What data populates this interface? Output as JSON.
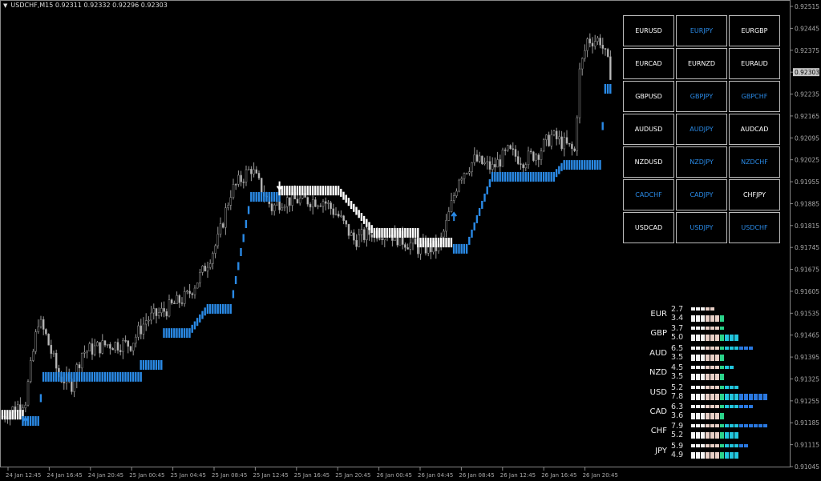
{
  "header": {
    "symbol": "USDCHF,M15",
    "open": "0.92311",
    "high": "0.92332",
    "low": "0.92296",
    "close": "0.92303"
  },
  "price_axis": {
    "ticks": [
      "0.92515",
      "0.92445",
      "0.92375",
      "0.92303",
      "0.92235",
      "0.92165",
      "0.92095",
      "0.92025",
      "0.91955",
      "0.91885",
      "0.91815",
      "0.91745",
      "0.91675",
      "0.91605",
      "0.91535",
      "0.91465",
      "0.91395",
      "0.91325",
      "0.91255",
      "0.91185",
      "0.91115",
      "0.91045"
    ],
    "current_price": "0.92303",
    "range": [
      0.91045,
      0.92515
    ]
  },
  "time_axis": {
    "ticks": [
      "24 Jan 12:45",
      "24 Jan 16:45",
      "24 Jan 20:45",
      "25 Jan 00:45",
      "25 Jan 04:45",
      "25 Jan 08:45",
      "25 Jan 12:45",
      "25 Jan 16:45",
      "25 Jan 20:45",
      "26 Jan 00:45",
      "26 Jan 04:45",
      "26 Jan 08:45",
      "26 Jan 12:45",
      "26 Jan 16:45",
      "26 Jan 20:45"
    ]
  },
  "colors": {
    "bull": "#2a8ae6",
    "bear": "#ffffff",
    "candle": "#9a9a9a",
    "blue_text": "#2a8ae6",
    "white_text": "#ffffff"
  },
  "price_path": [
    [
      0,
      0.91206
    ],
    [
      9,
      0.91257
    ],
    [
      14,
      0.91513
    ],
    [
      17,
      0.91461
    ],
    [
      22,
      0.91334
    ],
    [
      27,
      0.91308
    ],
    [
      31,
      0.9141
    ],
    [
      41,
      0.91436
    ],
    [
      50,
      0.91436
    ],
    [
      56,
      0.91513
    ],
    [
      62,
      0.91538
    ],
    [
      72,
      0.91589
    ],
    [
      78,
      0.91666
    ],
    [
      84,
      0.91768
    ],
    [
      89,
      0.91922
    ],
    [
      94,
      0.91973
    ],
    [
      97,
      0.91998
    ],
    [
      100,
      0.91947
    ],
    [
      105,
      0.91871
    ],
    [
      109,
      0.91896
    ],
    [
      125,
      0.91896
    ],
    [
      131,
      0.91845
    ],
    [
      137,
      0.91768
    ],
    [
      144,
      0.91794
    ],
    [
      150,
      0.91794
    ],
    [
      156,
      0.91768
    ],
    [
      162,
      0.91743
    ],
    [
      170,
      0.91743
    ],
    [
      173,
      0.91819
    ],
    [
      178,
      0.91973
    ],
    [
      184,
      0.92024
    ],
    [
      191,
      0.91998
    ],
    [
      197,
      0.9205
    ],
    [
      203,
      0.92024
    ],
    [
      209,
      0.9205
    ],
    [
      214,
      0.92101
    ],
    [
      219,
      0.92075
    ],
    [
      223,
      0.9205
    ],
    [
      225,
      0.92305
    ],
    [
      228,
      0.92408
    ],
    [
      233,
      0.92408
    ],
    [
      237,
      0.92305
    ]
  ],
  "indicator": [
    {
      "from": 0,
      "to": 8,
      "level": 0.91226,
      "trend": "down"
    },
    {
      "from": 8,
      "to": 14,
      "level": 0.91206,
      "trend": "up"
    },
    {
      "from": 16,
      "to": 54,
      "level": 0.91347,
      "trend": "up"
    },
    {
      "from": 54,
      "to": 62,
      "level": 0.91385,
      "trend": "up"
    },
    {
      "from": 63,
      "to": 73,
      "level": 0.91487,
      "trend": "up"
    },
    {
      "from": 80,
      "to": 89,
      "level": 0.91564,
      "trend": "up"
    },
    {
      "from": 97,
      "to": 108,
      "level": 0.91922,
      "trend": "up"
    },
    {
      "from": 108,
      "to": 131,
      "level": 0.91942,
      "trend": "down"
    },
    {
      "from": 145,
      "to": 162,
      "level": 0.91807,
      "trend": "down"
    },
    {
      "from": 162,
      "to": 175,
      "level": 0.91776,
      "trend": "down"
    },
    {
      "from": 176,
      "to": 181,
      "level": 0.91756,
      "trend": "up"
    },
    {
      "from": 191,
      "to": 215,
      "level": 0.91986,
      "trend": "up"
    },
    {
      "from": 219,
      "to": 233,
      "level": 0.92024,
      "trend": "up"
    },
    {
      "from": 235,
      "to": 237,
      "level": 0.92267,
      "trend": "up"
    }
  ],
  "arrows": [
    {
      "bar": 108,
      "dir": "down"
    },
    {
      "bar": 9,
      "dir": "up"
    },
    {
      "bar": 176,
      "dir": "up"
    }
  ],
  "pairs": [
    {
      "label": "EURUSD",
      "color": "white"
    },
    {
      "label": "EURJPY",
      "color": "blue"
    },
    {
      "label": "EURGBP",
      "color": "white"
    },
    {
      "label": "EURCAD",
      "color": "white"
    },
    {
      "label": "EURNZD",
      "color": "white"
    },
    {
      "label": "EURAUD",
      "color": "white"
    },
    {
      "label": "GBPUSD",
      "color": "white"
    },
    {
      "label": "GBPJPY",
      "color": "blue"
    },
    {
      "label": "GBPCHF",
      "color": "blue"
    },
    {
      "label": "AUDUSD",
      "color": "white"
    },
    {
      "label": "AUDJPY",
      "color": "blue"
    },
    {
      "label": "AUDCAD",
      "color": "white"
    },
    {
      "label": "NZDUSD",
      "color": "white"
    },
    {
      "label": "NZDJPY",
      "color": "blue"
    },
    {
      "label": "NZDCHF",
      "color": "blue"
    },
    {
      "label": "CADCHF",
      "color": "blue"
    },
    {
      "label": "CADJPY",
      "color": "blue"
    },
    {
      "label": "CHFJPY",
      "color": "white"
    },
    {
      "label": "USDCAD",
      "color": "white"
    },
    {
      "label": "USDJPY",
      "color": "blue"
    },
    {
      "label": "USDCHF",
      "color": "blue"
    }
  ],
  "strength": [
    {
      "currency": "EUR",
      "top": "2.7",
      "bottom": "3.4"
    },
    {
      "currency": "GBP",
      "top": "3.7",
      "bottom": "5.0"
    },
    {
      "currency": "AUD",
      "top": "6.5",
      "bottom": "3.5"
    },
    {
      "currency": "NZD",
      "top": "4.5",
      "bottom": "3.5"
    },
    {
      "currency": "USD",
      "top": "5.2",
      "bottom": "7.8"
    },
    {
      "currency": "CAD",
      "top": "6.3",
      "bottom": "3.6"
    },
    {
      "currency": "CHF",
      "top": "7.9",
      "bottom": "5.2"
    },
    {
      "currency": "JPY",
      "top": "5.9",
      "bottom": "4.9"
    }
  ]
}
